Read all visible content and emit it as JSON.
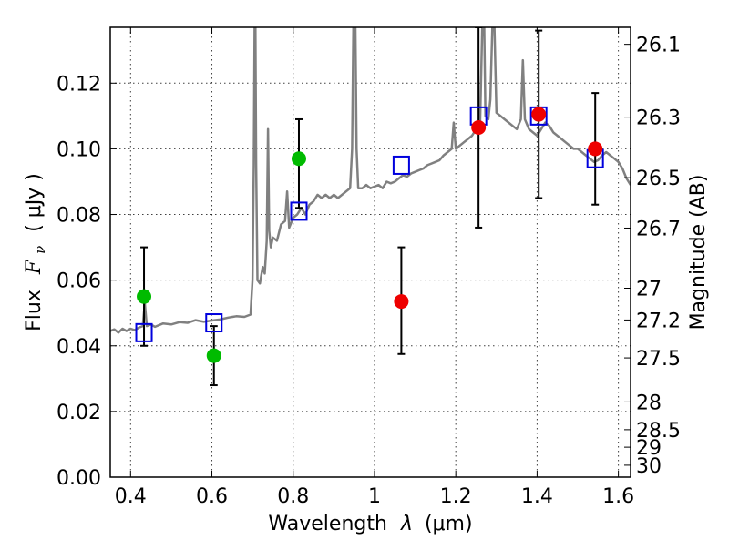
{
  "chart_data": {
    "type": "scatter",
    "xlabel_prefix": "Wavelength",
    "xlabel_symbol": "λ",
    "xlabel_unit": "(μm)",
    "ylabel_prefix": "Flux",
    "ylabel_symbol": "F",
    "ylabel_subscript": "ν",
    "ylabel_unit": "( μJy )",
    "y2label": "Magnitude (AB)",
    "xlim": [
      0.35,
      1.63
    ],
    "ylim": [
      0.0,
      0.137
    ],
    "x_ticks": [
      0.4,
      0.6,
      0.8,
      1.0,
      1.2,
      1.4,
      1.6
    ],
    "x_tick_labels": [
      "0.4",
      "0.6",
      "0.8",
      "1",
      "1.2",
      "1.4",
      "1.6"
    ],
    "y_ticks": [
      0.0,
      0.02,
      0.04,
      0.06,
      0.08,
      0.1,
      0.12
    ],
    "y_tick_labels": [
      "0.00",
      "0.02",
      "0.04",
      "0.06",
      "0.08",
      "0.10",
      "0.12"
    ],
    "y2_ticks": [
      26.1,
      26.3,
      26.5,
      26.7,
      27,
      27.2,
      27.5,
      28,
      28.5,
      29,
      30
    ],
    "y2_tick_labels": [
      "26.1",
      "26.3",
      "26.5",
      "26.7",
      "27",
      "27.2",
      "27.5",
      "28",
      "28.5",
      "29",
      "30"
    ],
    "grid": true,
    "colors": {
      "spectrum": "#808080",
      "green_points": "#00bb00",
      "red_points": "#ee0000",
      "model_squares": "#0000dd",
      "error_bars": "#000000"
    },
    "spectrum": [
      [
        0.35,
        0.0445
      ],
      [
        0.36,
        0.045
      ],
      [
        0.37,
        0.044
      ],
      [
        0.38,
        0.0452
      ],
      [
        0.39,
        0.0445
      ],
      [
        0.4,
        0.0452
      ],
      [
        0.41,
        0.0448
      ],
      [
        0.42,
        0.0455
      ],
      [
        0.43,
        0.046
      ],
      [
        0.435,
        0.053
      ],
      [
        0.44,
        0.046
      ],
      [
        0.45,
        0.0465
      ],
      [
        0.46,
        0.0458
      ],
      [
        0.48,
        0.0468
      ],
      [
        0.5,
        0.0465
      ],
      [
        0.52,
        0.0472
      ],
      [
        0.54,
        0.047
      ],
      [
        0.56,
        0.0478
      ],
      [
        0.58,
        0.0473
      ],
      [
        0.6,
        0.0477
      ],
      [
        0.62,
        0.048
      ],
      [
        0.64,
        0.0486
      ],
      [
        0.66,
        0.049
      ],
      [
        0.68,
        0.0488
      ],
      [
        0.695,
        0.0495
      ],
      [
        0.7,
        0.06
      ],
      [
        0.703,
        0.095
      ],
      [
        0.705,
        0.137
      ],
      [
        0.707,
        0.137
      ],
      [
        0.709,
        0.095
      ],
      [
        0.712,
        0.06
      ],
      [
        0.718,
        0.059
      ],
      [
        0.725,
        0.064
      ],
      [
        0.73,
        0.062
      ],
      [
        0.735,
        0.072
      ],
      [
        0.738,
        0.106
      ],
      [
        0.741,
        0.075
      ],
      [
        0.745,
        0.07
      ],
      [
        0.75,
        0.073
      ],
      [
        0.76,
        0.072
      ],
      [
        0.77,
        0.077
      ],
      [
        0.78,
        0.078
      ],
      [
        0.785,
        0.087
      ],
      [
        0.79,
        0.076
      ],
      [
        0.8,
        0.079
      ],
      [
        0.81,
        0.08
      ],
      [
        0.82,
        0.082
      ],
      [
        0.83,
        0.08
      ],
      [
        0.84,
        0.083
      ],
      [
        0.85,
        0.084
      ],
      [
        0.86,
        0.086
      ],
      [
        0.87,
        0.085
      ],
      [
        0.88,
        0.086
      ],
      [
        0.89,
        0.085
      ],
      [
        0.9,
        0.086
      ],
      [
        0.91,
        0.085
      ],
      [
        0.92,
        0.086
      ],
      [
        0.93,
        0.087
      ],
      [
        0.94,
        0.088
      ],
      [
        0.945,
        0.1
      ],
      [
        0.948,
        0.137
      ],
      [
        0.953,
        0.137
      ],
      [
        0.956,
        0.1
      ],
      [
        0.96,
        0.088
      ],
      [
        0.97,
        0.088
      ],
      [
        0.98,
        0.089
      ],
      [
        0.99,
        0.088
      ],
      [
        1.0,
        0.0885
      ],
      [
        1.01,
        0.089
      ],
      [
        1.02,
        0.088
      ],
      [
        1.03,
        0.09
      ],
      [
        1.04,
        0.0895
      ],
      [
        1.05,
        0.09
      ],
      [
        1.06,
        0.091
      ],
      [
        1.07,
        0.092
      ],
      [
        1.08,
        0.0915
      ],
      [
        1.09,
        0.0925
      ],
      [
        1.1,
        0.093
      ],
      [
        1.11,
        0.0935
      ],
      [
        1.12,
        0.094
      ],
      [
        1.13,
        0.095
      ],
      [
        1.14,
        0.0955
      ],
      [
        1.15,
        0.096
      ],
      [
        1.16,
        0.0965
      ],
      [
        1.17,
        0.098
      ],
      [
        1.18,
        0.099
      ],
      [
        1.19,
        0.1
      ],
      [
        1.195,
        0.108
      ],
      [
        1.2,
        0.1
      ],
      [
        1.21,
        0.101
      ],
      [
        1.22,
        0.102
      ],
      [
        1.23,
        0.103
      ],
      [
        1.24,
        0.104
      ],
      [
        1.25,
        0.106
      ],
      [
        1.26,
        0.108
      ],
      [
        1.265,
        0.137
      ],
      [
        1.27,
        0.137
      ],
      [
        1.273,
        0.11
      ],
      [
        1.28,
        0.109
      ],
      [
        1.285,
        0.115
      ],
      [
        1.29,
        0.137
      ],
      [
        1.295,
        0.137
      ],
      [
        1.3,
        0.111
      ],
      [
        1.31,
        0.11
      ],
      [
        1.32,
        0.109
      ],
      [
        1.33,
        0.108
      ],
      [
        1.34,
        0.107
      ],
      [
        1.35,
        0.106
      ],
      [
        1.36,
        0.109
      ],
      [
        1.365,
        0.127
      ],
      [
        1.37,
        0.109
      ],
      [
        1.38,
        0.106
      ],
      [
        1.39,
        0.105
      ],
      [
        1.4,
        0.104
      ],
      [
        1.41,
        0.106
      ],
      [
        1.42,
        0.108
      ],
      [
        1.43,
        0.107
      ],
      [
        1.44,
        0.105
      ],
      [
        1.45,
        0.104
      ],
      [
        1.46,
        0.103
      ],
      [
        1.47,
        0.102
      ],
      [
        1.48,
        0.101
      ],
      [
        1.49,
        0.1
      ],
      [
        1.5,
        0.1
      ],
      [
        1.51,
        0.099
      ],
      [
        1.52,
        0.098
      ],
      [
        1.53,
        0.097
      ],
      [
        1.54,
        0.096
      ],
      [
        1.55,
        0.0965
      ],
      [
        1.56,
        0.098
      ],
      [
        1.57,
        0.099
      ],
      [
        1.58,
        0.098
      ],
      [
        1.59,
        0.097
      ],
      [
        1.6,
        0.096
      ],
      [
        1.61,
        0.094
      ],
      [
        1.62,
        0.091
      ],
      [
        1.63,
        0.089
      ]
    ],
    "green_points": [
      {
        "x": 0.433,
        "y": 0.055,
        "err_low": 0.04,
        "err_high": 0.07
      },
      {
        "x": 0.605,
        "y": 0.037,
        "err_low": 0.028,
        "err_high": 0.046
      },
      {
        "x": 0.814,
        "y": 0.097,
        "err_low": 0.082,
        "err_high": 0.109
      }
    ],
    "red_points": [
      {
        "x": 1.066,
        "y": 0.0535,
        "err_low": 0.0375,
        "err_high": 0.07
      },
      {
        "x": 1.256,
        "y": 0.1065,
        "err_low": 0.076,
        "err_high": 0.137
      },
      {
        "x": 1.404,
        "y": 0.1105,
        "err_low": 0.085,
        "err_high": 0.136
      },
      {
        "x": 1.543,
        "y": 0.1,
        "err_low": 0.083,
        "err_high": 0.117
      }
    ],
    "model_squares": [
      {
        "x": 0.433,
        "y": 0.044
      },
      {
        "x": 0.605,
        "y": 0.047
      },
      {
        "x": 0.814,
        "y": 0.081
      },
      {
        "x": 1.066,
        "y": 0.095
      },
      {
        "x": 1.256,
        "y": 0.11
      },
      {
        "x": 1.404,
        "y": 0.11
      },
      {
        "x": 1.543,
        "y": 0.097
      }
    ]
  }
}
